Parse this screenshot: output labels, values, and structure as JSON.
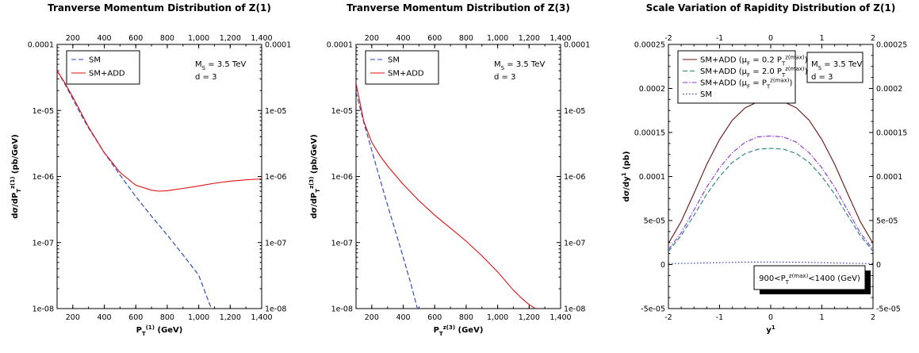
{
  "chart_data": [
    {
      "type": "line",
      "title": "Tranverse Momentum Distribution of Z(1)",
      "xlabel": "P",
      "xlabel_sub": "T",
      "xlabel_sup": "(1)",
      "xlabel_unit": " (GeV)",
      "ylabel": "dσ/dP",
      "ylabel_sub": "T",
      "ylabel_sup": "z(1)",
      "ylabel_unit": " (pb/GeV)",
      "xlim": [
        100,
        1400
      ],
      "ylim": [
        1e-08,
        0.0001
      ],
      "yscale": "log",
      "xticks": [
        "200",
        "400",
        "600",
        "800",
        "1,000",
        "1,200",
        "1,400"
      ],
      "yticks": [
        "0.0001",
        "1e-05",
        "1e-06",
        "1e-07",
        "1e-08"
      ],
      "legend_position": "top-left",
      "annotation": {
        "m": "M",
        "m_sub": "S",
        "m_val": " = 3.5 TeV",
        "d": "d = 3"
      },
      "series": [
        {
          "name": "SM",
          "color": "#1f3fbf",
          "dash": "dashed",
          "x": [
            100,
            150,
            200,
            250,
            300,
            400,
            500,
            600,
            700,
            800,
            900,
            1000,
            1080
          ],
          "y": [
            4e-05,
            2.5e-05,
            1.5e-05,
            8.8e-06,
            5.4e-06,
            2.3e-06,
            1.05e-06,
            5e-07,
            2.5e-07,
            1.3e-07,
            6.5e-08,
            3.2e-08,
            1e-08
          ]
        },
        {
          "name": "SM+ADD",
          "color": "#e01010",
          "dash": "solid",
          "x": [
            100,
            150,
            200,
            250,
            300,
            400,
            500,
            600,
            700,
            750,
            800,
            900,
            1000,
            1100,
            1200,
            1300,
            1400
          ],
          "y": [
            4e-05,
            2.6e-05,
            1.6e-05,
            9.5e-06,
            5.6e-06,
            2.3e-06,
            1.15e-06,
            7.4e-07,
            6.2e-07,
            6e-07,
            6.1e-07,
            6.6e-07,
            7.2e-07,
            7.9e-07,
            8.5e-07,
            8.9e-07,
            9.2e-07
          ]
        }
      ]
    },
    {
      "type": "line",
      "title": "Tranverse Momentum Distribution of Z(3)",
      "xlabel": "P",
      "xlabel_sub": "T",
      "xlabel_sup": "z(3)",
      "xlabel_unit": " (GeV)",
      "ylabel": "dσ/dP",
      "ylabel_sub": "T",
      "ylabel_sup": "z(3)",
      "ylabel_unit": " (pb/GeV)",
      "xlim": [
        100,
        1400
      ],
      "ylim": [
        1e-08,
        0.0001
      ],
      "yscale": "log",
      "xticks": [
        "200",
        "400",
        "600",
        "800",
        "1,000",
        "1,200",
        "1,400"
      ],
      "yticks": [
        "0.0001",
        "1e-05",
        "1e-06",
        "1e-07",
        "1e-08"
      ],
      "legend_position": "top-left",
      "annotation": {
        "m": "M",
        "m_sub": "S",
        "m_val": " = 3.5 TeV",
        "d": "d = 3"
      },
      "series": [
        {
          "name": "SM",
          "color": "#1f3fbf",
          "dash": "dashed",
          "x": [
            100,
            150,
            200,
            250,
            300,
            350,
            400,
            450,
            490
          ],
          "y": [
            1.9e-05,
            6.5e-06,
            2.5e-06,
            9.5e-07,
            3.7e-07,
            1.5e-07,
            6e-08,
            2.3e-08,
            1e-08
          ]
        },
        {
          "name": "SM+ADD",
          "color": "#e01010",
          "dash": "solid",
          "x": [
            100,
            150,
            200,
            250,
            300,
            400,
            500,
            600,
            700,
            800,
            900,
            1000,
            1100,
            1150,
            1200,
            1240
          ],
          "y": [
            2.6e-05,
            6.8e-06,
            3.3e-06,
            2.1e-06,
            1.45e-06,
            7.6e-07,
            4.3e-07,
            2.6e-07,
            1.65e-07,
            1.05e-07,
            6.3e-08,
            3.6e-08,
            1.9e-08,
            1.45e-08,
            1.15e-08,
            1e-08
          ]
        }
      ]
    },
    {
      "type": "line",
      "title": "Scale Variation of Rapidity Distribution of Z(1)",
      "xlabel": "y",
      "xlabel_sup": "1",
      "ylabel": "dσ/dy",
      "ylabel_sup": "1",
      "ylabel_unit": " (pb)",
      "xlim": [
        -2,
        2
      ],
      "ylim": [
        -5e-05,
        0.00025
      ],
      "yscale": "linear",
      "xticks": [
        "-2",
        "-1",
        "0",
        "1",
        "2"
      ],
      "yticks": [
        "0.00025",
        "0.0002",
        "0.00015",
        "0.0001",
        "5e-05",
        "0",
        "-5e-05"
      ],
      "legend_position": "top-left",
      "annotation": {
        "m": "M",
        "m_sub": "S",
        "m_val": " = 3.5 TeV",
        "d": "d = 3"
      },
      "cut_label": {
        "pre": "900<P",
        "sub": "T",
        "sup": "z(max)",
        "post": "<1400 (GeV)"
      },
      "series": [
        {
          "name": "SM+ADD (μ",
          "name_sub": "F",
          "name_mid": " = 0.2 P",
          "name_sub2": "T",
          "name_sup": "z(max)",
          "name_post": ")",
          "color": "#6b0f0f",
          "dash": "solid",
          "x": [
            -2.0,
            -1.75,
            -1.5,
            -1.25,
            -1.0,
            -0.75,
            -0.5,
            -0.25,
            0.0,
            0.25,
            0.5,
            0.75,
            1.0,
            1.25,
            1.5,
            1.75,
            2.0
          ],
          "y": [
            2.4e-05,
            4.9e-05,
            8.1e-05,
            0.000114,
            0.000142,
            0.000164,
            0.000178,
            0.000185,
            0.000186,
            0.000185,
            0.000178,
            0.000164,
            0.000142,
            0.000114,
            8.1e-05,
            4.9e-05,
            2.4e-05
          ]
        },
        {
          "name": "SM+ADD (μ",
          "name_sub": "F",
          "name_mid": " = 2.0 P",
          "name_sub2": "T",
          "name_sup": "z(max)",
          "name_post": ")",
          "color": "#1f8080",
          "dash": "dashed",
          "x": [
            -2.0,
            -1.75,
            -1.5,
            -1.25,
            -1.0,
            -0.75,
            -0.5,
            -0.25,
            0.0,
            0.25,
            0.5,
            0.75,
            1.0,
            1.25,
            1.5,
            1.75,
            2.0
          ],
          "y": [
            1.5e-05,
            3.3e-05,
            5.6e-05,
            8e-05,
            0.0001,
            0.000116,
            0.000126,
            0.000131,
            0.000132,
            0.000131,
            0.000126,
            0.000116,
            0.0001,
            8e-05,
            5.6e-05,
            3.3e-05,
            1.5e-05
          ]
        },
        {
          "name": "SM+ADD (μ",
          "name_sub": "F",
          "name_mid": " = P",
          "name_sub2": "T",
          "name_sup": "z(max)",
          "name_post": ")",
          "color": "#8a2be2",
          "dash": "dashdot",
          "x": [
            -2.0,
            -1.75,
            -1.5,
            -1.25,
            -1.0,
            -0.75,
            -0.5,
            -0.25,
            0.0,
            0.25,
            0.5,
            0.75,
            1.0,
            1.25,
            1.5,
            1.75,
            2.0
          ],
          "y": [
            1.7e-05,
            3.6e-05,
            6.2e-05,
            8.8e-05,
            0.00011,
            0.000127,
            0.000139,
            0.000145,
            0.000146,
            0.000145,
            0.000139,
            0.000127,
            0.00011,
            8.8e-05,
            6.2e-05,
            3.6e-05,
            1.7e-05
          ]
        },
        {
          "name": "SM",
          "color": "#2020d0",
          "dash": "dotted",
          "x": [
            -2.0,
            -1.5,
            -1.0,
            -0.5,
            0.0,
            0.5,
            1.0,
            1.5,
            2.0
          ],
          "y": [
            1e-06,
            1.5e-06,
            2.2e-06,
            2.7e-06,
            2.9e-06,
            2.7e-06,
            2.2e-06,
            1.5e-06,
            1e-06
          ]
        }
      ]
    }
  ]
}
